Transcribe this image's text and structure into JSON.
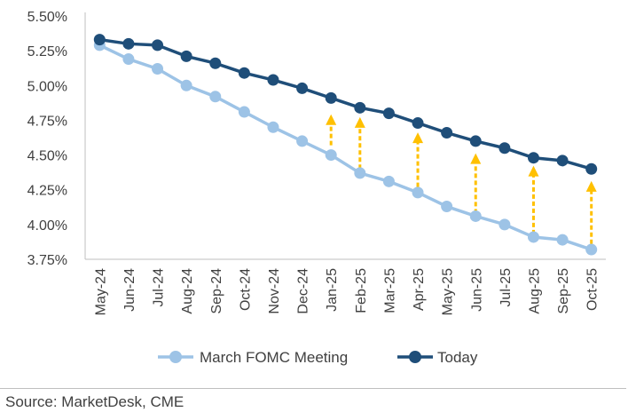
{
  "chart_data": {
    "type": "line",
    "categories": [
      "May-24",
      "Jun-24",
      "Jul-24",
      "Aug-24",
      "Sep-24",
      "Oct-24",
      "Nov-24",
      "Dec-24",
      "Jan-25",
      "Feb-25",
      "Mar-25",
      "Apr-25",
      "May-25",
      "Jun-25",
      "Jul-25",
      "Aug-25",
      "Sep-25",
      "Oct-25"
    ],
    "series": [
      {
        "name": "March FOMC Meeting",
        "color": "#9dc3e6",
        "values": [
          5.29,
          5.19,
          5.12,
          5.0,
          4.92,
          4.81,
          4.7,
          4.6,
          4.5,
          4.37,
          4.31,
          4.23,
          4.13,
          4.06,
          4.0,
          3.91,
          3.89,
          3.82
        ]
      },
      {
        "name": "Today",
        "color": "#1f4e79",
        "values": [
          5.33,
          5.3,
          5.29,
          5.21,
          5.16,
          5.09,
          5.04,
          4.98,
          4.91,
          4.84,
          4.8,
          4.73,
          4.66,
          4.6,
          4.55,
          4.48,
          4.46,
          4.4
        ]
      }
    ],
    "ylim": [
      3.75,
      5.5
    ],
    "yticks": [
      "3.75%",
      "4.00%",
      "4.25%",
      "4.50%",
      "4.75%",
      "5.00%",
      "5.25%",
      "5.50%"
    ],
    "ytick_values": [
      3.75,
      4.0,
      4.25,
      4.5,
      4.75,
      5.0,
      5.25,
      5.5
    ],
    "legend_position": "bottom",
    "arrow_color": "#ffc000",
    "annotations": [
      {
        "type": "arrow-up",
        "category": "Jan-25",
        "from": 4.57,
        "to": 4.78
      },
      {
        "type": "arrow-up",
        "category": "Feb-25",
        "from": 4.4,
        "to": 4.76
      },
      {
        "type": "arrow-up",
        "category": "Apr-25",
        "from": 4.27,
        "to": 4.65
      },
      {
        "type": "arrow-up",
        "category": "Jun-25",
        "from": 4.08,
        "to": 4.5
      },
      {
        "type": "arrow-up",
        "category": "Aug-25",
        "from": 3.93,
        "to": 4.41
      },
      {
        "type": "arrow-up",
        "category": "Oct-25",
        "from": 3.86,
        "to": 4.3
      }
    ]
  },
  "footer": {
    "source": "Source: MarketDesk, CME"
  }
}
